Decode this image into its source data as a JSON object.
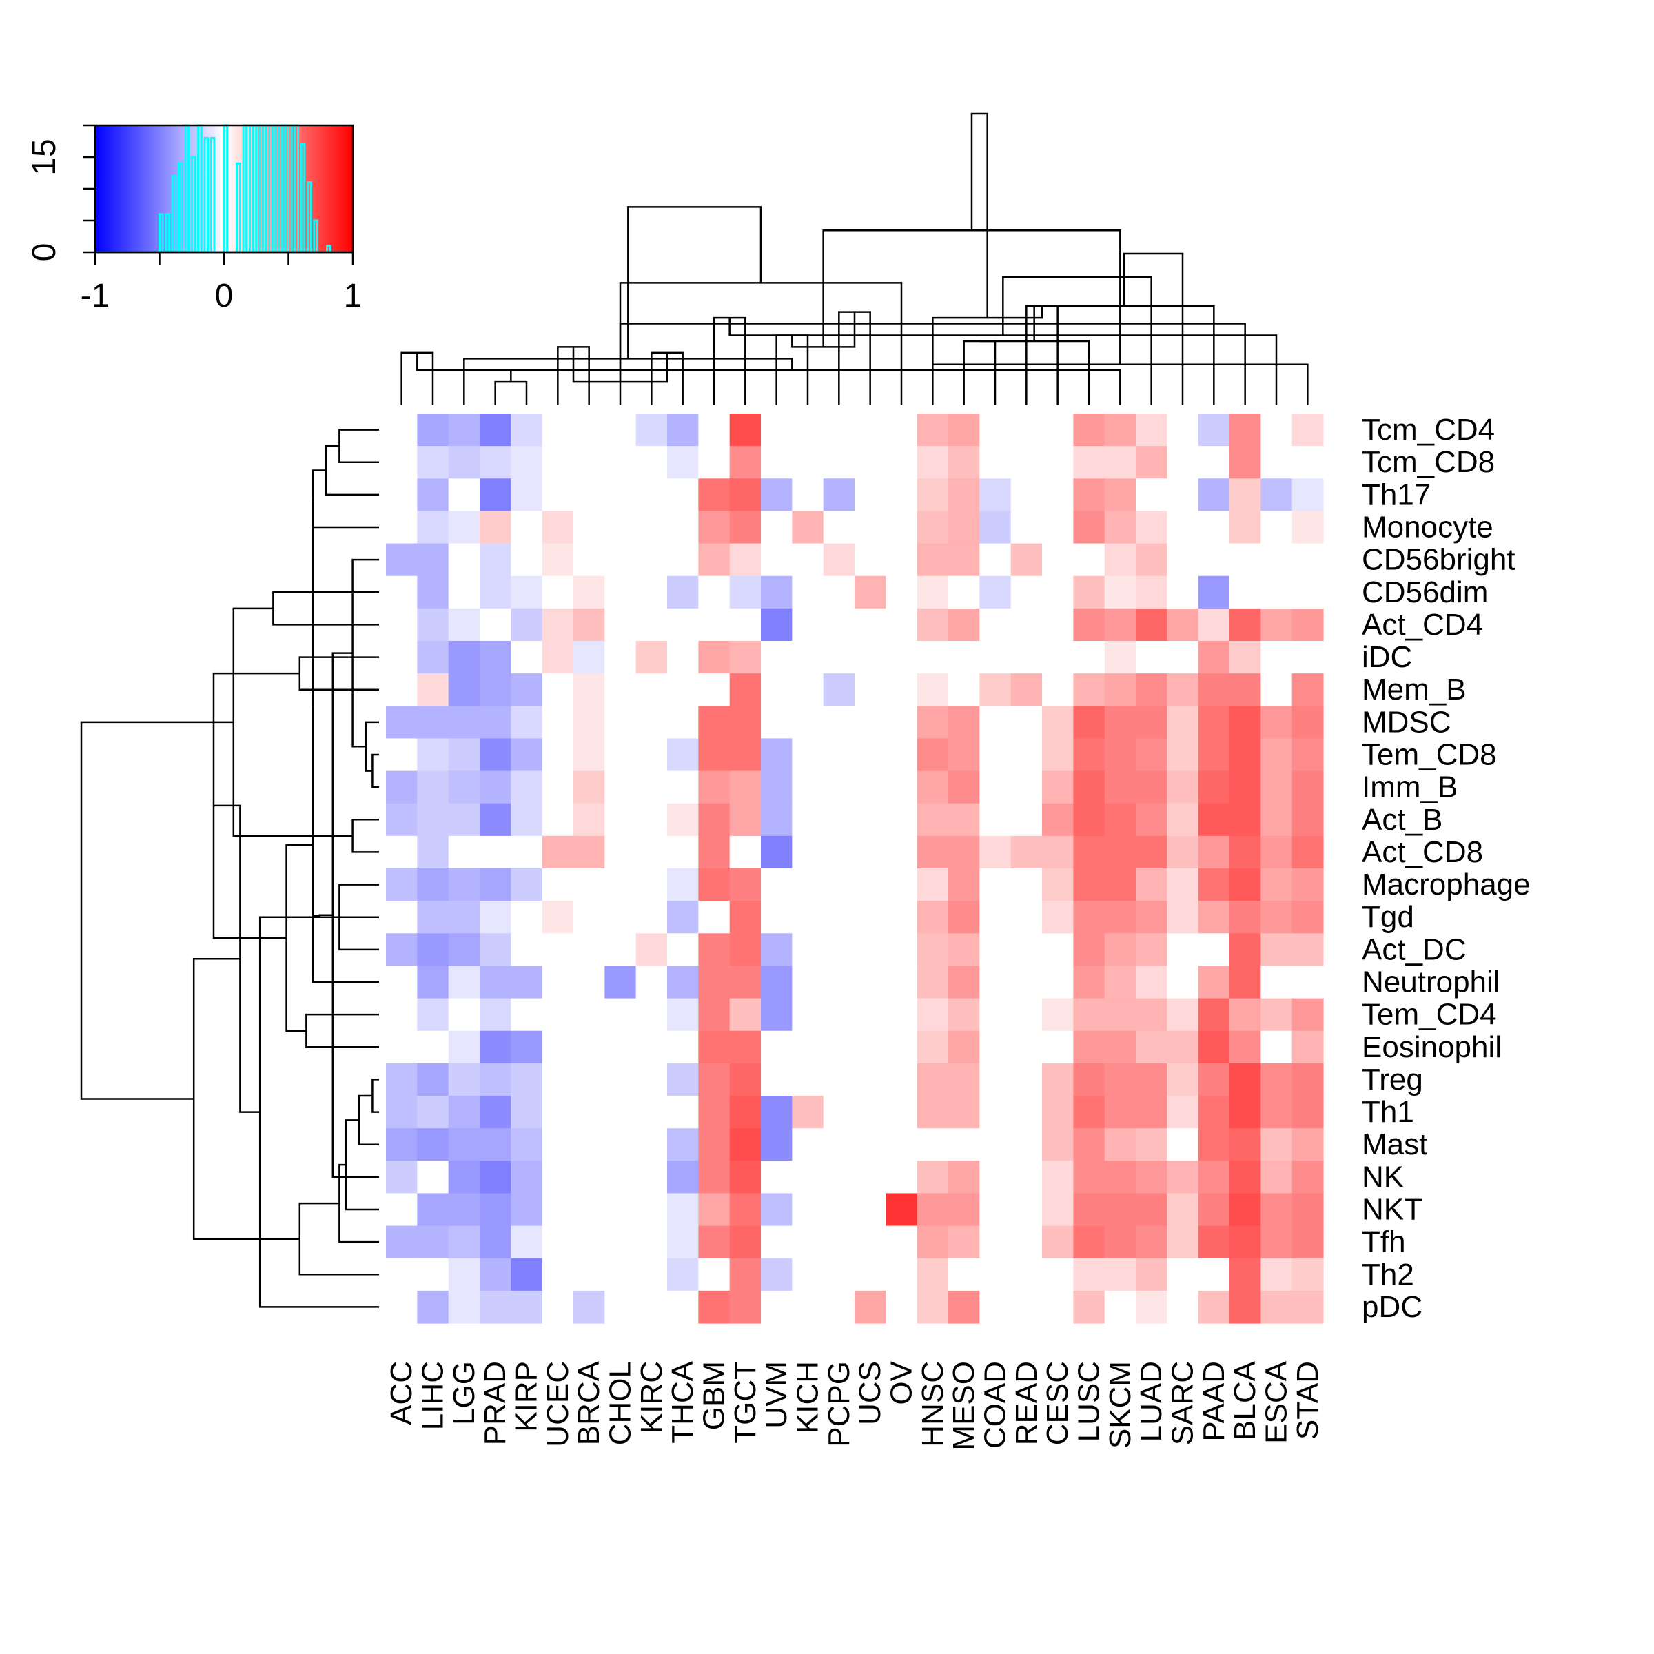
{
  "chart_data": {
    "type": "heatmap",
    "title": "",
    "xlabel": "",
    "ylabel": "",
    "columns": [
      "ACC",
      "LIHC",
      "LGG",
      "PRAD",
      "KIRP",
      "UCEC",
      "BRCA",
      "CHOL",
      "KIRC",
      "THCA",
      "GBM",
      "TGCT",
      "UVM",
      "KICH",
      "PCPG",
      "UCS",
      "OV",
      "HNSC",
      "MESO",
      "COAD",
      "READ",
      "CESC",
      "LUSC",
      "SKCM",
      "LUAD",
      "SARC",
      "PAAD",
      "BLCA",
      "ESCA",
      "STAD"
    ],
    "rows": [
      "Tcm_CD4",
      "Tcm_CD8",
      "Th17",
      "Monocyte",
      "CD56bright",
      "CD56dim",
      "Act_CD4",
      "iDC",
      "Mem_B",
      "MDSC",
      "Tem_CD8",
      "Imm_B",
      "Act_B",
      "Act_CD8",
      "Macrophage",
      "Tgd",
      "Act_DC",
      "Neutrophil",
      "Tem_CD4",
      "Eosinophil",
      "Treg",
      "Th1",
      "Mast",
      "NK",
      "NKT",
      "Tfh",
      "Th2",
      "pDC"
    ],
    "values": [
      [
        0,
        -0.35,
        -0.3,
        -0.5,
        -0.15,
        0,
        0,
        0,
        -0.15,
        -0.3,
        0,
        0.7,
        0,
        0,
        0,
        0,
        0,
        0.3,
        0.35,
        0,
        0,
        0,
        0.4,
        0.35,
        0.15,
        0,
        -0.2,
        0.45,
        0,
        0.15
      ],
      [
        0,
        -0.15,
        -0.2,
        -0.15,
        -0.1,
        0,
        0,
        0,
        0,
        -0.1,
        0,
        0.45,
        0,
        0,
        0,
        0,
        0,
        0.15,
        0.25,
        0,
        0,
        0,
        0.15,
        0.15,
        0.3,
        0,
        0,
        0.45,
        0,
        0
      ],
      [
        0,
        -0.3,
        0,
        -0.5,
        -0.1,
        0,
        0,
        0,
        0,
        0,
        0.55,
        0.6,
        -0.3,
        0,
        -0.3,
        0,
        0,
        0.2,
        0.3,
        -0.15,
        0,
        0,
        0.4,
        0.35,
        0,
        0,
        -0.3,
        0.2,
        -0.25,
        -0.1
      ],
      [
        0,
        -0.15,
        -0.1,
        0.2,
        0,
        0.15,
        0,
        0,
        0,
        0,
        0.4,
        0.5,
        0,
        0.3,
        0,
        0,
        0,
        0.25,
        0.3,
        -0.2,
        0,
        0,
        0.45,
        0.3,
        0.15,
        0,
        0,
        0.2,
        0,
        0.1
      ],
      [
        -0.3,
        -0.3,
        0,
        -0.15,
        0,
        0.1,
        0,
        0,
        0,
        0,
        0.3,
        0.15,
        0,
        0,
        0.15,
        0,
        0,
        0.3,
        0.3,
        0,
        0.25,
        0,
        0,
        0.15,
        0.25,
        0,
        0,
        0,
        0,
        0
      ],
      [
        0,
        -0.3,
        0,
        -0.15,
        -0.1,
        0,
        0.1,
        0,
        0,
        -0.2,
        0,
        -0.15,
        -0.3,
        0,
        0,
        0.3,
        0,
        0.1,
        0,
        -0.15,
        0,
        0,
        0.25,
        0.1,
        0.15,
        0,
        -0.4,
        0,
        0,
        0
      ],
      [
        0,
        -0.2,
        -0.1,
        0,
        -0.2,
        0.15,
        0.25,
        0,
        0,
        0,
        0,
        0,
        -0.5,
        0,
        0,
        0,
        0,
        0.25,
        0.35,
        0,
        0,
        0,
        0.45,
        0.4,
        0.6,
        0.35,
        0.15,
        0.6,
        0.35,
        0.4
      ],
      [
        0,
        -0.25,
        -0.4,
        -0.35,
        0,
        0.15,
        -0.1,
        0,
        0.2,
        0,
        0.35,
        0.3,
        0,
        0,
        0,
        0,
        0,
        0,
        0,
        0,
        0,
        0,
        0,
        0.1,
        0,
        0,
        0.4,
        0.2,
        0,
        0
      ],
      [
        0,
        0.15,
        -0.4,
        -0.35,
        -0.3,
        0,
        0.1,
        0,
        0,
        0,
        0,
        0.55,
        0,
        0,
        -0.2,
        0,
        0,
        0.1,
        0,
        0.2,
        0.3,
        0,
        0.3,
        0.35,
        0.45,
        0.3,
        0.5,
        0.5,
        0,
        0.45
      ],
      [
        -0.3,
        -0.3,
        -0.3,
        -0.3,
        -0.15,
        0,
        0.1,
        0,
        0,
        0,
        0.55,
        0.55,
        0,
        0,
        0,
        0,
        0,
        0.35,
        0.4,
        0,
        0,
        0.2,
        0.6,
        0.5,
        0.5,
        0.2,
        0.55,
        0.65,
        0.4,
        0.5
      ],
      [
        0,
        -0.15,
        -0.2,
        -0.45,
        -0.3,
        0,
        0.1,
        0,
        0,
        -0.15,
        0.55,
        0.55,
        -0.3,
        0,
        0,
        0,
        0,
        0.45,
        0.4,
        0,
        0,
        0.2,
        0.55,
        0.5,
        0.45,
        0.2,
        0.55,
        0.65,
        0.35,
        0.45
      ],
      [
        -0.3,
        -0.2,
        -0.25,
        -0.3,
        -0.15,
        0,
        0.2,
        0,
        0,
        0,
        0.4,
        0.35,
        -0.3,
        0,
        0,
        0,
        0,
        0.35,
        0.45,
        0,
        0,
        0.3,
        0.6,
        0.5,
        0.5,
        0.25,
        0.6,
        0.65,
        0.35,
        0.5
      ],
      [
        -0.25,
        -0.2,
        -0.2,
        -0.45,
        -0.15,
        0,
        0.15,
        0,
        0,
        0.1,
        0.5,
        0.35,
        -0.3,
        0,
        0,
        0,
        0,
        0.3,
        0.3,
        0,
        0,
        0.4,
        0.6,
        0.55,
        0.45,
        0.2,
        0.65,
        0.65,
        0.35,
        0.5
      ],
      [
        0,
        -0.2,
        0,
        0,
        0,
        0.3,
        0.3,
        0,
        0,
        0,
        0.5,
        0,
        -0.5,
        0,
        0,
        0,
        0,
        0.4,
        0.4,
        0.15,
        0.25,
        0.25,
        0.55,
        0.55,
        0.55,
        0.25,
        0.4,
        0.6,
        0.4,
        0.55
      ],
      [
        -0.25,
        -0.35,
        -0.3,
        -0.35,
        -0.2,
        0,
        0,
        0,
        0,
        -0.1,
        0.55,
        0.5,
        0,
        0,
        0,
        0,
        0,
        0.15,
        0.4,
        0,
        0,
        0.2,
        0.55,
        0.55,
        0.3,
        0.15,
        0.55,
        0.65,
        0.35,
        0.4
      ],
      [
        0,
        -0.25,
        -0.25,
        -0.1,
        0,
        0.1,
        0,
        0,
        0,
        -0.25,
        0,
        0.55,
        0,
        0,
        0,
        0,
        0,
        0.3,
        0.45,
        0,
        0,
        0.15,
        0.45,
        0.45,
        0.4,
        0.15,
        0.35,
        0.5,
        0.4,
        0.45
      ],
      [
        -0.3,
        -0.4,
        -0.35,
        -0.2,
        0,
        0,
        0,
        0,
        0.15,
        0,
        0.5,
        0.55,
        -0.3,
        0,
        0,
        0,
        0,
        0.25,
        0.3,
        0,
        0,
        0,
        0.45,
        0.35,
        0.3,
        0,
        0,
        0.6,
        0.25,
        0.25
      ],
      [
        0,
        -0.35,
        -0.1,
        -0.3,
        -0.3,
        0,
        0,
        -0.4,
        0,
        -0.3,
        0.5,
        0.5,
        -0.4,
        0,
        0,
        0,
        0,
        0.25,
        0.4,
        0,
        0,
        0,
        0.4,
        0.3,
        0.15,
        0,
        0.35,
        0.6,
        0,
        0
      ],
      [
        0,
        -0.15,
        0,
        -0.15,
        0,
        0,
        0,
        0,
        0,
        -0.1,
        0.5,
        0.25,
        -0.4,
        0,
        0,
        0,
        0,
        0.15,
        0.25,
        0,
        0,
        0.1,
        0.3,
        0.3,
        0.3,
        0.15,
        0.6,
        0.35,
        0.25,
        0.4
      ],
      [
        0,
        0,
        -0.1,
        -0.45,
        -0.4,
        0,
        0,
        0,
        0,
        0,
        0.55,
        0.55,
        0,
        0,
        0,
        0,
        0,
        0.2,
        0.35,
        0,
        0,
        0,
        0.4,
        0.4,
        0.25,
        0.25,
        0.65,
        0.45,
        0,
        0.3
      ],
      [
        -0.25,
        -0.35,
        -0.2,
        -0.25,
        -0.2,
        0,
        0,
        0,
        0,
        -0.2,
        0.5,
        0.6,
        0,
        0,
        0,
        0,
        0,
        0.3,
        0.3,
        0,
        0,
        0.25,
        0.5,
        0.45,
        0.45,
        0.2,
        0.5,
        0.7,
        0.45,
        0.5
      ],
      [
        -0.25,
        -0.2,
        -0.3,
        -0.45,
        -0.2,
        0,
        0,
        0,
        0,
        0,
        0.5,
        0.65,
        -0.45,
        0.25,
        0,
        0,
        0,
        0.3,
        0.3,
        0,
        0,
        0.25,
        0.55,
        0.45,
        0.45,
        0.15,
        0.55,
        0.7,
        0.45,
        0.5
      ],
      [
        -0.35,
        -0.4,
        -0.35,
        -0.35,
        -0.25,
        0,
        0,
        0,
        0,
        -0.25,
        0.5,
        0.7,
        -0.45,
        0,
        0,
        0,
        0,
        0,
        0,
        0,
        0,
        0.25,
        0.45,
        0.3,
        0.25,
        0,
        0.55,
        0.6,
        0.25,
        0.35
      ],
      [
        -0.2,
        0,
        -0.4,
        -0.5,
        -0.3,
        0,
        0,
        0,
        0,
        -0.35,
        0.5,
        0.65,
        0,
        0,
        0,
        0,
        0,
        0.25,
        0.35,
        0,
        0,
        0.15,
        0.45,
        0.45,
        0.4,
        0.3,
        0.45,
        0.65,
        0.3,
        0.45
      ],
      [
        0,
        -0.35,
        -0.35,
        -0.4,
        -0.3,
        0,
        0,
        0,
        0,
        -0.1,
        0.35,
        0.55,
        -0.25,
        0,
        0,
        0,
        0.8,
        0.4,
        0.4,
        0,
        0,
        0.15,
        0.5,
        0.5,
        0.5,
        0.2,
        0.5,
        0.7,
        0.45,
        0.5
      ],
      [
        -0.3,
        -0.3,
        -0.25,
        -0.4,
        -0.1,
        0,
        0,
        0,
        0,
        -0.1,
        0.5,
        0.6,
        0,
        0,
        0,
        0,
        0,
        0.35,
        0.3,
        0,
        0,
        0.25,
        0.55,
        0.5,
        0.45,
        0.2,
        0.6,
        0.65,
        0.45,
        0.5
      ],
      [
        0,
        0,
        -0.1,
        -0.3,
        -0.5,
        0,
        0,
        0,
        0,
        -0.15,
        0,
        0.5,
        -0.2,
        0,
        0,
        0,
        0,
        0.2,
        0,
        0,
        0,
        0,
        0.15,
        0.15,
        0.25,
        0,
        0,
        0.6,
        0.15,
        0.2
      ],
      [
        0,
        -0.3,
        -0.1,
        -0.2,
        -0.2,
        0,
        -0.2,
        0,
        0,
        0,
        0.55,
        0.5,
        0,
        0,
        0,
        0.35,
        0,
        0.2,
        0.45,
        0,
        0,
        0,
        0.25,
        0,
        0.1,
        0,
        0.25,
        0.6,
        0.25,
        0.25
      ]
    ],
    "color_scale": {
      "low": "#0000ff",
      "mid": "#ffffff",
      "high": "#ff0000",
      "range": [
        -1,
        1
      ],
      "breaks": [
        -1,
        0,
        1
      ]
    },
    "color_key": {
      "x_ticks": [
        "-1",
        "0",
        "1"
      ],
      "y_ticks": [
        "0",
        "15"
      ],
      "ylim": [
        0,
        20
      ],
      "histogram_color": "#00ffff"
    },
    "col_dendrogram": {
      "merges": [
        [
          0,
          1
        ],
        [
          3,
          4
        ],
        [
          2,
          23
        ],
        [
          5,
          6
        ],
        [
          8,
          9
        ],
        [
          7,
          27
        ],
        [
          18,
          19
        ],
        [
          20,
          21
        ],
        [
          12,
          13
        ],
        [
          14,
          15
        ],
        [
          10,
          11
        ],
        [
          22,
          36
        ],
        [
          30,
          31
        ],
        [
          33,
          34
        ],
        [
          29,
          35
        ],
        [
          38,
          39
        ],
        [
          28,
          40
        ],
        [
          26,
          41
        ],
        [
          17,
          37
        ],
        [
          16,
          43
        ],
        [
          32,
          42
        ],
        [
          44,
          45
        ],
        [
          24,
          46
        ],
        [
          25,
          47
        ],
        [
          49,
          50
        ],
        [
          48,
          51
        ]
      ],
      "heights": [
        0.45,
        0.2,
        0.3,
        0.5,
        0.45,
        0.7,
        0.55,
        0.85,
        0.6,
        0.8,
        0.75,
        0.55,
        0.3,
        0.2,
        0.35,
        0.5,
        0.6,
        0.85,
        0.75,
        1.05,
        0.4,
        1.5,
        1.1,
        1.3,
        1.7,
        2.5
      ]
    },
    "row_dendrogram": {
      "merges": [
        [
          0,
          1
        ],
        [
          7,
          8
        ],
        [
          5,
          6
        ],
        [
          28,
          2
        ],
        [
          12,
          13
        ],
        [
          20,
          21
        ],
        [
          10,
          11
        ],
        [
          34,
          9
        ],
        [
          33,
          22
        ],
        [
          35,
          4
        ],
        [
          36,
          24
        ],
        [
          37,
          23
        ],
        [
          31,
          3
        ],
        [
          38,
          25
        ],
        [
          39,
          15
        ],
        [
          40,
          42
        ],
        [
          14,
          16
        ],
        [
          41,
          26
        ],
        [
          43,
          17
        ],
        [
          18,
          19
        ],
        [
          46,
          47
        ],
        [
          44,
          27
        ],
        [
          48,
          29
        ],
        [
          49,
          50
        ],
        [
          30,
          32
        ],
        [
          51,
          45
        ],
        [
          53,
          52
        ]
      ],
      "heights": [
        0.3,
        0.6,
        0.8,
        0.4,
        0.2,
        0.05,
        0.05,
        0.1,
        0.15,
        0.2,
        0.25,
        0.35,
        0.5,
        0.3,
        0.45,
        0.5,
        0.3,
        0.6,
        0.5,
        0.55,
        0.7,
        0.9,
        1.25,
        1.05,
        1.1,
        1.4,
        2.25
      ]
    }
  }
}
